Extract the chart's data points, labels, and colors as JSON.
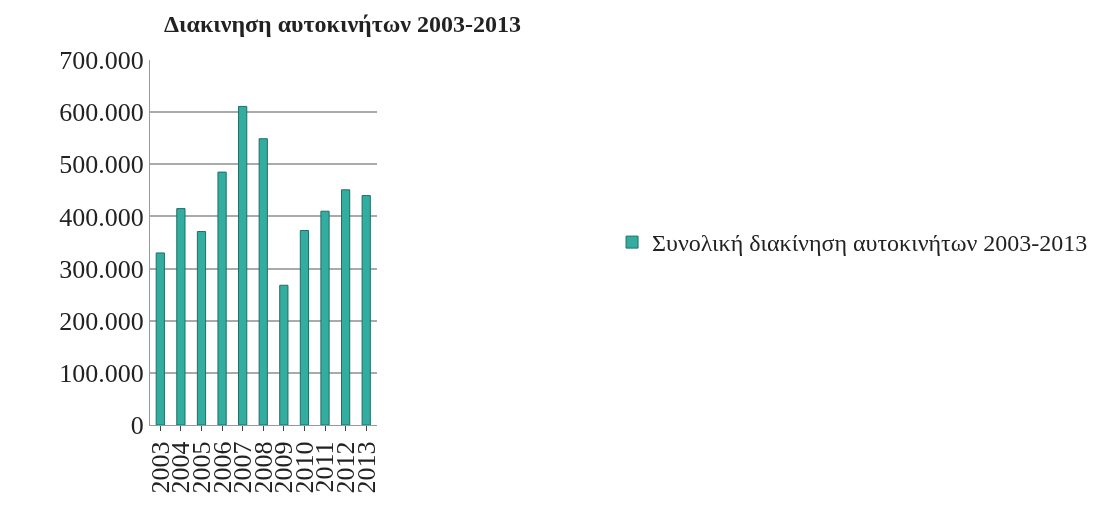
{
  "chart_data": {
    "type": "bar",
    "title": "Διακινηση αυτοκινήτων 2003-2013",
    "categories": [
      "2003",
      "2004",
      "2005",
      "2006",
      "2007",
      "2008",
      "2009",
      "2010",
      "2011",
      "2012",
      "2013"
    ],
    "series": [
      {
        "name": "Συνολική διακίνηση αυτοκινήτων 2003-2013",
        "color": "#33ada0",
        "values": [
          330000,
          415000,
          371000,
          485000,
          611000,
          549000,
          268000,
          373000,
          410000,
          451000,
          440000
        ]
      }
    ],
    "ylim": [
      0,
      700000
    ],
    "yticks": [
      {
        "value": 0,
        "label": "0"
      },
      {
        "value": 100000,
        "label": "100.000"
      },
      {
        "value": 200000,
        "label": "200.000"
      },
      {
        "value": 300000,
        "label": "300.000"
      },
      {
        "value": 400000,
        "label": "400.000"
      },
      {
        "value": 500000,
        "label": "500.000"
      },
      {
        "value": 600000,
        "label": "600.000"
      },
      {
        "value": 700000,
        "label": "700.000"
      }
    ],
    "grid": "y",
    "legend": "right"
  }
}
